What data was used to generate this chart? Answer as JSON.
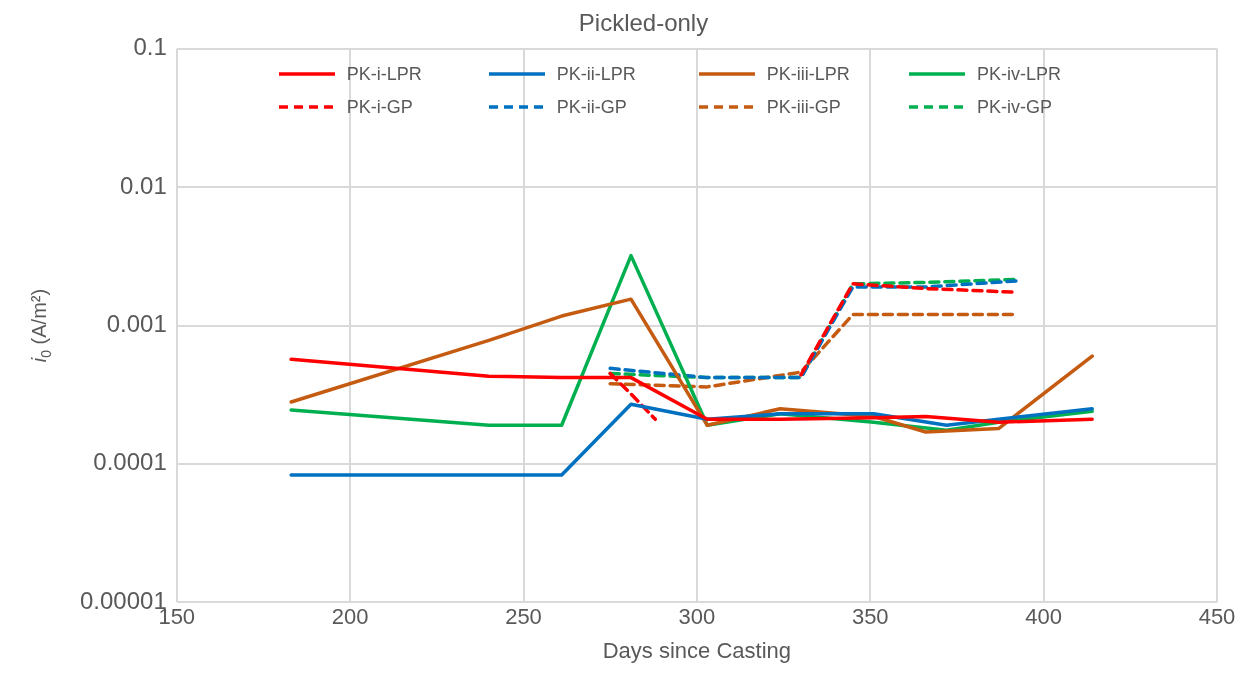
{
  "chart_data": {
    "type": "line",
    "title": "Pickled-only",
    "xlabel": "Days since Casting",
    "ylabel": "i$_{0}$ (A/m²)",
    "xlim": [
      150,
      450
    ],
    "xticks": [
      150,
      200,
      250,
      300,
      350,
      400,
      450
    ],
    "ylim": [
      1e-05,
      0.1
    ],
    "yticks": [
      {
        "value": 1e-05,
        "label": "0.00001"
      },
      0.0001,
      0.001,
      0.01,
      0.1
    ],
    "log": "y",
    "grid": true,
    "legend": "top",
    "marker": "none",
    "series": [
      {
        "name": "PK-i-LPR",
        "color": "#ff0000",
        "line_style": "solid",
        "x": [
          183,
          240,
          261,
          281,
          303,
          324,
          351,
          366,
          387,
          414
        ],
        "values": [
          0.00057,
          0.00043,
          0.00042,
          0.00042,
          0.00021,
          0.00021,
          0.000215,
          0.00022,
          0.0002,
          0.00021
        ]
      },
      {
        "name": "PK-ii-LPR",
        "color": "#0070c0",
        "line_style": "solid",
        "x": [
          183,
          240,
          261,
          281,
          303,
          324,
          351,
          372,
          387,
          414
        ],
        "values": [
          8.3e-05,
          8.3e-05,
          8.3e-05,
          0.00027,
          0.00021,
          0.00023,
          0.00023,
          0.00019,
          0.00021,
          0.00025
        ]
      },
      {
        "name": "PK-iii-LPR",
        "color": "#c55a11",
        "line_style": "solid",
        "x": [
          183,
          240,
          261,
          281,
          303,
          324,
          351,
          366,
          387,
          414
        ],
        "values": [
          0.00028,
          0.00078,
          0.00117,
          0.00155,
          0.00019,
          0.00025,
          0.00022,
          0.00017,
          0.00018,
          0.0006
        ]
      },
      {
        "name": "PK-iv-LPR",
        "color": "#00b050",
        "line_style": "solid",
        "x": [
          183,
          240,
          261,
          281,
          303,
          324,
          351,
          372,
          387,
          414
        ],
        "values": [
          0.000245,
          0.00019,
          0.00019,
          0.0032,
          0.00019,
          0.00023,
          0.0002,
          0.000175,
          0.0002,
          0.00024
        ]
      },
      {
        "name": "PK-i-GP",
        "color": "#ff0000",
        "line_style": "dashed",
        "x": [
          275,
          281,
          288,
          303,
          330,
          345,
          366,
          392
        ],
        "values": [
          0.00045,
          0.00032,
          0.00021,
          null,
          0.00044,
          0.002,
          0.00185,
          0.00174
        ]
      },
      {
        "name": "PK-ii-GP",
        "color": "#0070c0",
        "line_style": "dashed",
        "x": [
          275,
          303,
          330,
          345,
          366,
          392
        ],
        "values": [
          0.00049,
          0.00042,
          0.00042,
          0.0019,
          0.0019,
          0.0021
        ]
      },
      {
        "name": "PK-iii-GP",
        "color": "#c55a11",
        "line_style": "dashed",
        "x": [
          275,
          303,
          330,
          345,
          366,
          392
        ],
        "values": [
          0.00038,
          0.00036,
          0.00046,
          0.0012,
          0.0012,
          0.0012
        ]
      },
      {
        "name": "PK-iv-GP",
        "color": "#00b050",
        "line_style": "dashed",
        "x": [
          275,
          303,
          330,
          345,
          366,
          392
        ],
        "values": [
          0.00045,
          0.00042,
          0.00042,
          0.002,
          0.00205,
          0.00215
        ]
      }
    ]
  }
}
